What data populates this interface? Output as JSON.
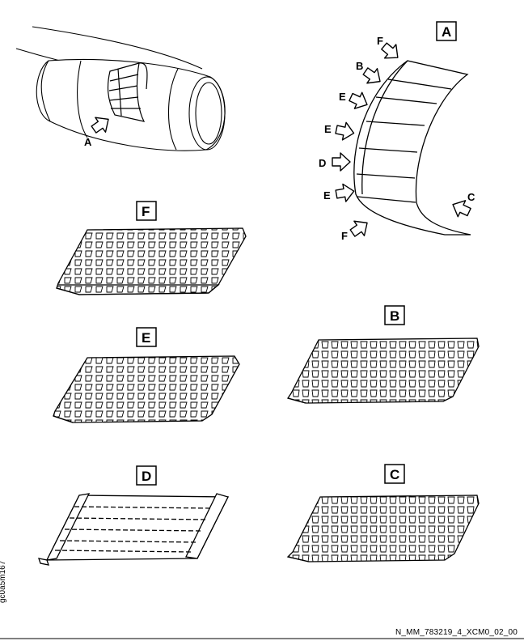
{
  "view_labels": {
    "A": "A",
    "B": "B",
    "C": "C",
    "D": "D",
    "E": "E",
    "F": "F"
  },
  "engine_callout": "A",
  "liner_callouts": {
    "f_top": "F",
    "b": "B",
    "e1": "E",
    "e2": "E",
    "d": "D",
    "e3": "E",
    "f_bottom": "F",
    "c": "C"
  },
  "side_code": "gc0a5m167",
  "figure_ref": "N_MM_783219_4_XCM0_02_00"
}
